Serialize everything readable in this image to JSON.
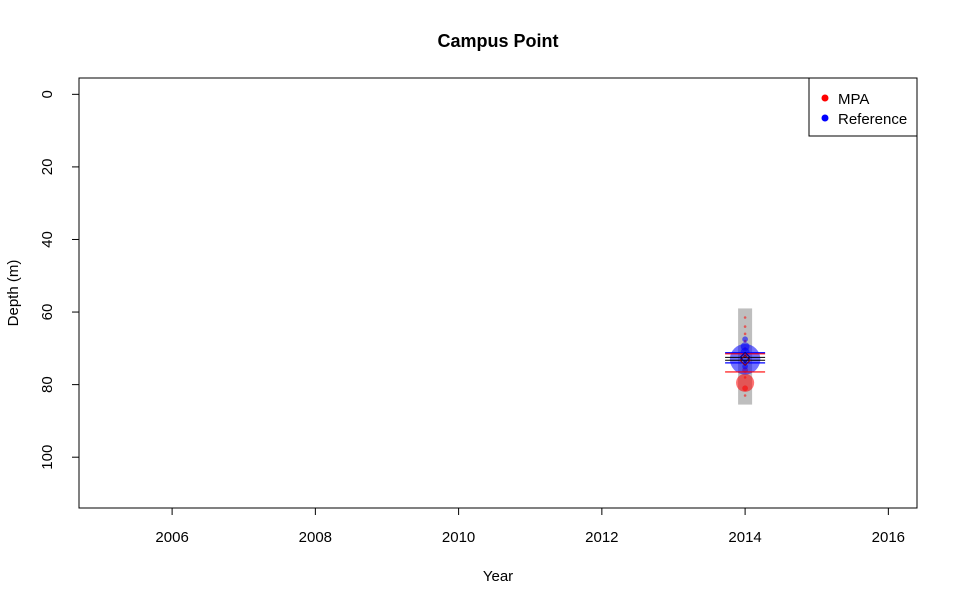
{
  "chart_data": {
    "type": "scatter",
    "title": "Campus Point",
    "xlabel": "Year",
    "ylabel": "Depth (m)",
    "xlim": [
      2004.7,
      2016.4
    ],
    "ylim": [
      114,
      -4.5
    ],
    "y_reversed": true,
    "x_ticks": [
      2006,
      2008,
      2010,
      2012,
      2014,
      2016
    ],
    "y_ticks": [
      0,
      20,
      40,
      60,
      80,
      100
    ],
    "grid": false,
    "legend_position": "top-right",
    "series": [
      {
        "name": "MPA",
        "color": "#ff0000",
        "points": [
          {
            "x": 2014,
            "y": 61.5,
            "size": 1
          },
          {
            "x": 2014,
            "y": 64,
            "size": 1
          },
          {
            "x": 2014,
            "y": 66,
            "size": 1
          },
          {
            "x": 2014,
            "y": 68,
            "size": 1
          },
          {
            "x": 2014,
            "y": 70,
            "size": 1
          },
          {
            "x": 2014,
            "y": 72,
            "size": 1
          },
          {
            "x": 2014,
            "y": 74,
            "size": 1
          },
          {
            "x": 2014,
            "y": 76,
            "size": 2
          },
          {
            "x": 2014,
            "y": 78,
            "size": 1
          },
          {
            "x": 2014,
            "y": 79.5,
            "size": 6
          },
          {
            "x": 2014,
            "y": 81,
            "size": 2
          },
          {
            "x": 2014,
            "y": 83,
            "size": 1
          }
        ],
        "mean": 73.3,
        "range_lines": [
          71.5,
          76.5
        ]
      },
      {
        "name": "Reference",
        "color": "#0000ff",
        "points": [
          {
            "x": 2014,
            "y": 67.5,
            "size": 2
          },
          {
            "x": 2014,
            "y": 69.5,
            "size": 3
          },
          {
            "x": 2014,
            "y": 71,
            "size": 3
          },
          {
            "x": 2014,
            "y": 73,
            "size": 10
          },
          {
            "x": 2014,
            "y": 75,
            "size": 2
          }
        ],
        "mean": 72.5,
        "range_lines": [
          71.2,
          74
        ]
      }
    ],
    "depth_band": {
      "x": 2014,
      "y_range": [
        59,
        85.5
      ],
      "color": "#bebebe"
    }
  }
}
